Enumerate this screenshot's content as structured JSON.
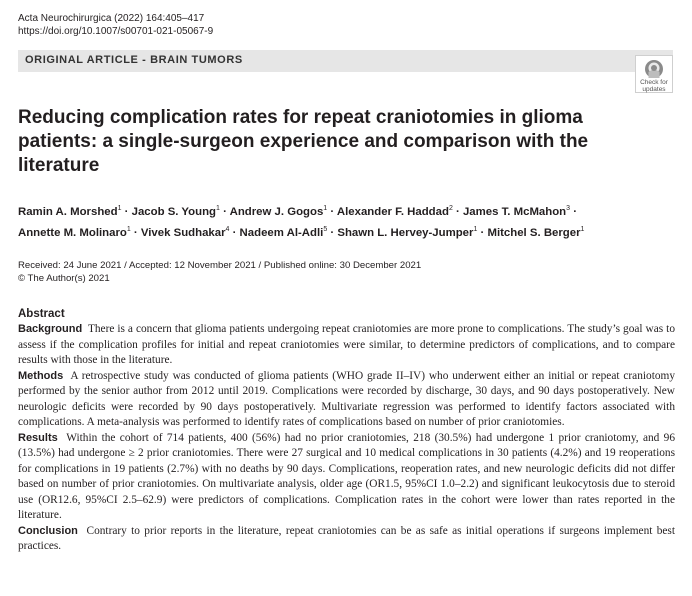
{
  "journal": {
    "citation": "Acta Neurochirurgica (2022) 164:405–417",
    "doi": "https://doi.org/10.1007/s00701-021-05067-9"
  },
  "banner": "ORIGINAL ARTICLE - BRAIN TUMORS",
  "crossmark": {
    "line1": "Check for",
    "line2": "updates"
  },
  "title": "Reducing complication rates for repeat craniotomies in glioma patients: a single-surgeon experience and comparison with the literature",
  "authors": [
    [
      {
        "name": "Ramin A. Morshed",
        "aff": "1"
      },
      {
        "name": "Jacob S. Young",
        "aff": "1"
      },
      {
        "name": "Andrew J. Gogos",
        "aff": "1"
      },
      {
        "name": "Alexander F. Haddad",
        "aff": "2"
      },
      {
        "name": "James T. McMahon",
        "aff": "3"
      }
    ],
    [
      {
        "name": "Annette M. Molinaro",
        "aff": "1"
      },
      {
        "name": "Vivek Sudhakar",
        "aff": "4"
      },
      {
        "name": "Nadeem Al-Adli",
        "aff": "5"
      },
      {
        "name": "Shawn L. Hervey-Jumper",
        "aff": "1"
      },
      {
        "name": "Mitchel S. Berger",
        "aff": "1"
      }
    ]
  ],
  "dates": {
    "history": "Received: 24 June 2021 / Accepted: 12 November 2021 / Published online: 30 December 2021",
    "copyright": "© The Author(s) 2021"
  },
  "abstract": {
    "heading": "Abstract",
    "sections": [
      {
        "label": "Background",
        "text": "There is a concern that glioma patients undergoing repeat craniotomies are more prone to complications. The study’s goal was to assess if the complication profiles for initial and repeat craniotomies were similar, to determine predictors of complications, and to compare results with those in the literature."
      },
      {
        "label": "Methods",
        "text": "A retrospective study was conducted of glioma patients (WHO grade II–IV) who underwent either an initial or repeat craniotomy performed by the senior author from 2012 until 2019. Complications were recorded by discharge, 30 days, and 90 days postoperatively. New neurologic deficits were recorded by 90 days postoperatively. Multivariate regression was performed to identify factors associated with complications. A meta-analysis was performed to identify rates of complications based on number of prior craniotomies."
      },
      {
        "label": "Results",
        "text": "Within the cohort of 714 patients, 400 (56%) had no prior craniotomies, 218 (30.5%) had undergone 1 prior craniotomy, and 96 (13.5%) had undergone ≥ 2 prior craniotomies. There were 27 surgical and 10 medical complications in 30 patients (4.2%) and 19 reoperations for complications in 19 patients (2.7%) with no deaths by 90 days. Complications, reoperation rates, and new neurologic deficits did not differ based on number of prior craniotomies. On multivariate analysis, older age (OR1.5, 95%CI 1.0–2.2) and significant leukocytosis due to steroid use (OR12.6, 95%CI 2.5–62.9) were predictors of complications. Complication rates in the cohort were lower than rates reported in the literature."
      },
      {
        "label": "Conclusion",
        "text": "Contrary to prior reports in the literature, repeat craniotomies can be as safe as initial operations if surgeons implement best practices."
      }
    ]
  }
}
